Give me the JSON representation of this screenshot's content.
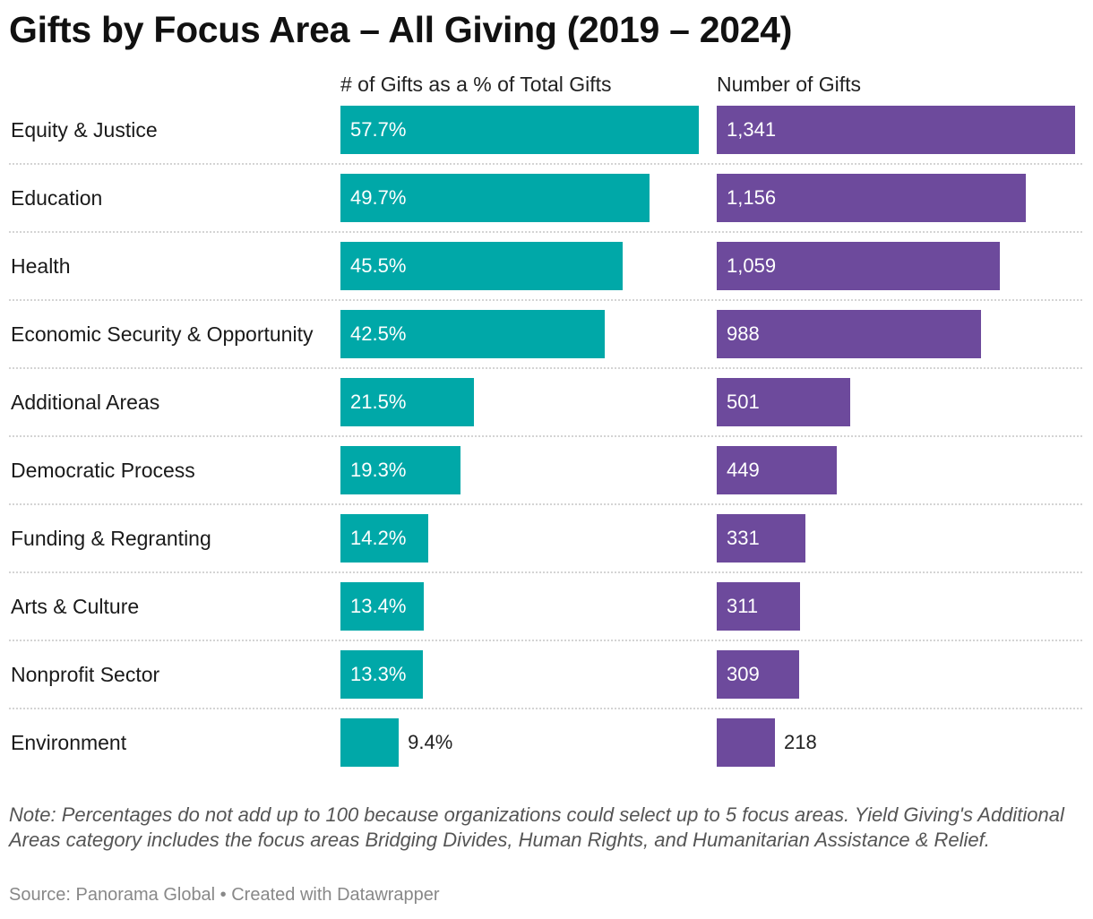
{
  "chart_data": {
    "type": "bar",
    "title": "Gifts by Focus Area – All Giving (2019 – 2024)",
    "categories": [
      "Equity & Justice",
      "Education",
      "Health",
      "Economic Security & Opportunity",
      "Additional Areas",
      "Democratic Process",
      "Funding & Regranting",
      "Arts & Culture",
      "Nonprofit Sector",
      "Environment"
    ],
    "series": [
      {
        "name": "# of Gifts as a % of Total Gifts",
        "values": [
          57.7,
          49.7,
          45.5,
          42.5,
          21.5,
          19.3,
          14.2,
          13.4,
          13.3,
          9.4
        ],
        "labels": [
          "57.7%",
          "49.7%",
          "45.5%",
          "42.5%",
          "21.5%",
          "19.3%",
          "14.2%",
          "13.4%",
          "13.3%",
          "9.4%"
        ],
        "color": "#00a8a8"
      },
      {
        "name": "Number of Gifts",
        "values": [
          1341,
          1156,
          1059,
          988,
          501,
          449,
          331,
          311,
          309,
          218
        ],
        "labels": [
          "1,341",
          "1,156",
          "1,059",
          "988",
          "501",
          "449",
          "331",
          "311",
          "309",
          "218"
        ],
        "color": "#6d4a9c"
      }
    ],
    "grid": false,
    "note": "Note: Percentages do not add up to 100 because organizations could select up to 5 focus areas. Yield Giving's Additional Areas category includes the focus areas Bridging Divides, Human Rights, and Humanitarian Assistance & Relief.",
    "source": "Source: Panorama Global • Created with Datawrapper"
  }
}
